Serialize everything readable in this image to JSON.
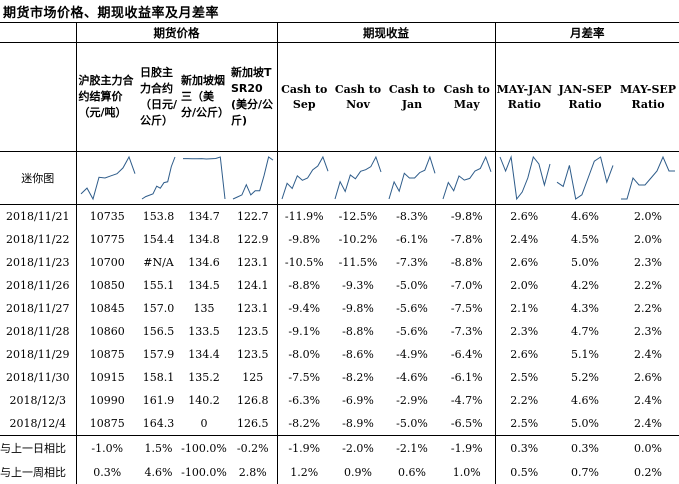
{
  "title": "期货市场价格、期现收益率及月差率",
  "groups": {
    "futures": "期货价格",
    "basis": "期现收益",
    "spread": "月差率"
  },
  "columns": [
    "沪胶主力合约结算价（元/吨）",
    "日胶主力合约（日元/公斤）",
    "新加坡烟三（美分/公斤）",
    "新加坡TSR20(美分/公斤)",
    "Cash to Sep",
    "Cash to Nov",
    "Cash to Jan",
    "Cash to May",
    "MAY-JAN Ratio",
    "JAN-SEP Ratio",
    "MAY-SEP Ratio"
  ],
  "sparkline_label": "迷你图",
  "rows": [
    [
      "2018/11/21",
      "10735",
      "153.8",
      "134.7",
      "122.7",
      "-11.9%",
      "-12.5%",
      "-8.3%",
      "-9.8%",
      "2.6%",
      "4.6%",
      "2.0%"
    ],
    [
      "2018/11/22",
      "10775",
      "154.4",
      "134.8",
      "122.9",
      "-9.8%",
      "-10.2%",
      "-6.1%",
      "-7.8%",
      "2.4%",
      "4.5%",
      "2.0%"
    ],
    [
      "2018/11/23",
      "10700",
      "#N/A",
      "134.6",
      "123.1",
      "-10.5%",
      "-11.5%",
      "-7.3%",
      "-8.8%",
      "2.6%",
      "5.0%",
      "2.3%"
    ],
    [
      "2018/11/26",
      "10850",
      "155.1",
      "134.5",
      "124.1",
      "-8.8%",
      "-9.3%",
      "-5.0%",
      "-7.0%",
      "2.0%",
      "4.2%",
      "2.2%"
    ],
    [
      "2018/11/27",
      "10845",
      "157.0",
      "135",
      "123.1",
      "-9.4%",
      "-9.8%",
      "-5.6%",
      "-7.5%",
      "2.1%",
      "4.3%",
      "2.2%"
    ],
    [
      "2018/11/28",
      "10860",
      "156.5",
      "133.5",
      "123.5",
      "-9.1%",
      "-8.8%",
      "-5.6%",
      "-7.3%",
      "2.3%",
      "4.7%",
      "2.3%"
    ],
    [
      "2018/11/29",
      "10875",
      "157.9",
      "134.4",
      "123.5",
      "-8.0%",
      "-8.6%",
      "-4.9%",
      "-6.4%",
      "2.6%",
      "5.1%",
      "2.4%"
    ],
    [
      "2018/11/30",
      "10915",
      "158.1",
      "135.2",
      "125",
      "-7.5%",
      "-8.2%",
      "-4.6%",
      "-6.1%",
      "2.5%",
      "5.2%",
      "2.6%"
    ],
    [
      "2018/12/3",
      "10990",
      "161.9",
      "140.2",
      "126.8",
      "-6.3%",
      "-6.9%",
      "-2.9%",
      "-4.7%",
      "2.2%",
      "4.6%",
      "2.4%"
    ],
    [
      "2018/12/4",
      "10875",
      "164.3",
      "0",
      "126.5",
      "-8.2%",
      "-8.9%",
      "-5.0%",
      "-6.5%",
      "2.5%",
      "5.0%",
      "2.4%"
    ]
  ],
  "summary": [
    [
      "与上一日相比",
      "-1.0%",
      "1.5%",
      "-100.0%",
      "-0.2%",
      "-1.9%",
      "-2.0%",
      "-2.1%",
      "-1.9%",
      "0.3%",
      "0.3%",
      "0.0%"
    ],
    [
      "与上一周相比",
      "0.3%",
      "4.6%",
      "-100.0%",
      "2.8%",
      "1.2%",
      "0.9%",
      "0.6%",
      "1.0%",
      "0.5%",
      "0.7%",
      "0.2%"
    ]
  ]
}
